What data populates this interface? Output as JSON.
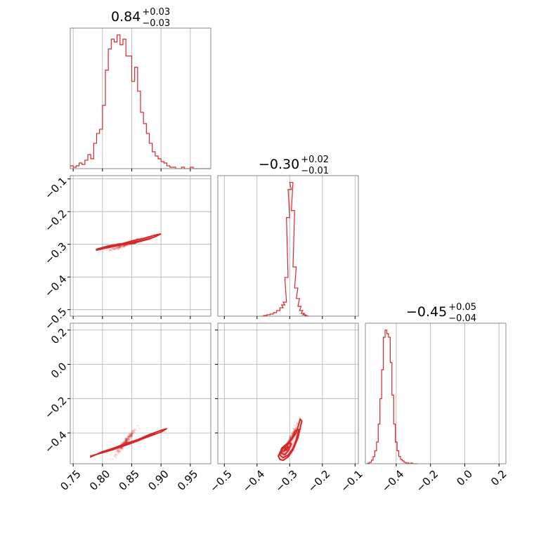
{
  "chart_data": {
    "type": "corner",
    "color": "#d62728",
    "titles": [
      {
        "value": "0.84",
        "plus": "+0.03",
        "minus": "−0.03"
      },
      {
        "value": "−0.30",
        "plus": "+0.02",
        "minus": "−0.01"
      },
      {
        "value": "−0.45",
        "plus": "+0.05",
        "minus": "−0.04"
      }
    ],
    "ranges": [
      [
        0.745,
        0.985
      ],
      [
        -0.52,
        -0.09
      ],
      [
        -0.58,
        0.24
      ]
    ],
    "ticks": [
      [
        0.75,
        0.8,
        0.85,
        0.9,
        0.95
      ],
      [
        -0.1,
        -0.2,
        -0.3,
        -0.4,
        -0.5
      ],
      [
        0.2,
        0.0,
        -0.2,
        -0.4
      ]
    ],
    "bottom_tick_labels": [
      [
        "0.75",
        "0.80",
        "0.85",
        "0.90",
        "0.95"
      ],
      [
        "−0.5",
        "−0.4",
        "−0.3",
        "−0.2",
        "−0.1"
      ],
      [
        "−0.4",
        "−0.2",
        "0.0",
        "0.2"
      ]
    ],
    "bottom_tick_values": [
      [
        0.75,
        0.8,
        0.85,
        0.9,
        0.95
      ],
      [
        -0.5,
        -0.4,
        -0.3,
        -0.2,
        -0.1
      ],
      [
        -0.4,
        -0.2,
        0.0,
        0.2
      ]
    ],
    "left_tick_labels": {
      "row1": [
        "−0.1",
        "−0.2",
        "−0.3",
        "−0.4",
        "−0.5"
      ],
      "row2": [
        "0.2",
        "0.0",
        "−0.2",
        "−0.4"
      ]
    },
    "left_tick_values": {
      "row1": [
        -0.1,
        -0.2,
        -0.3,
        -0.4,
        -0.5
      ],
      "row2": [
        0.2,
        0.0,
        -0.2,
        -0.4
      ]
    },
    "hist": [
      {
        "param": 0,
        "x": [
          0.745,
          0.75,
          0.755,
          0.76,
          0.765,
          0.77,
          0.775,
          0.78,
          0.785,
          0.79,
          0.795,
          0.8,
          0.805,
          0.81,
          0.815,
          0.82,
          0.825,
          0.83,
          0.835,
          0.84,
          0.845,
          0.85,
          0.855,
          0.86,
          0.865,
          0.87,
          0.875,
          0.88,
          0.885,
          0.89,
          0.895,
          0.9,
          0.905,
          0.91,
          0.915,
          0.92,
          0.925,
          0.93,
          0.935,
          0.94,
          0.945,
          0.95,
          0.955,
          0.96,
          0.965,
          0.97,
          0.975,
          0.98
        ],
        "counts": [
          2,
          1,
          2,
          4,
          3,
          6,
          10,
          7,
          18,
          25,
          28,
          45,
          70,
          85,
          92,
          90,
          95,
          88,
          92,
          80,
          80,
          62,
          72,
          55,
          40,
          32,
          25,
          18,
          12,
          9,
          7,
          5,
          4,
          2,
          1,
          1,
          0,
          0,
          1,
          0,
          0,
          1,
          0,
          0,
          0,
          0,
          0,
          0
        ]
      },
      {
        "param": 1,
        "x": [
          -0.39,
          -0.38,
          -0.37,
          -0.36,
          -0.35,
          -0.34,
          -0.33,
          -0.325,
          -0.32,
          -0.315,
          -0.31,
          -0.305,
          -0.3,
          -0.295,
          -0.29,
          -0.285,
          -0.28,
          -0.275,
          -0.27,
          -0.265,
          -0.26,
          -0.255,
          -0.25
        ],
        "counts": [
          0,
          1,
          2,
          3,
          5,
          8,
          12,
          16,
          20,
          55,
          140,
          180,
          190,
          150,
          70,
          40,
          25,
          14,
          8,
          4,
          2,
          1,
          0
        ]
      },
      {
        "param": 2,
        "x": [
          -0.575,
          -0.565,
          -0.555,
          -0.545,
          -0.535,
          -0.525,
          -0.515,
          -0.505,
          -0.495,
          -0.485,
          -0.475,
          -0.465,
          -0.455,
          -0.445,
          -0.435,
          -0.425,
          -0.415,
          -0.405,
          -0.395,
          -0.385,
          -0.375,
          -0.365,
          -0.355,
          -0.345,
          -0.335,
          -0.325,
          -0.315,
          -0.305,
          -0.295,
          -0.285
        ],
        "counts": [
          0,
          1,
          2,
          5,
          10,
          18,
          30,
          55,
          90,
          130,
          175,
          185,
          180,
          175,
          140,
          95,
          55,
          30,
          18,
          10,
          6,
          4,
          2,
          1,
          1,
          0,
          1,
          0,
          0,
          0
        ]
      }
    ],
    "joint": [
      {
        "params": [
          0,
          1
        ],
        "center": [
          0.84,
          -0.3
        ],
        "direction": [
          1.0,
          0.35
        ],
        "contours": [
          {
            "x": [
              0.79,
              0.8,
              0.81,
              0.82,
              0.83,
              0.84,
              0.85,
              0.86,
              0.87,
              0.88,
              0.89,
              0.9,
              0.89,
              0.87,
              0.85,
              0.83,
              0.81,
              0.79
            ],
            "y": [
              -0.315,
              -0.31,
              -0.305,
              -0.302,
              -0.3,
              -0.298,
              -0.296,
              -0.293,
              -0.288,
              -0.283,
              -0.277,
              -0.268,
              -0.272,
              -0.282,
              -0.29,
              -0.3,
              -0.31,
              -0.318
            ]
          },
          {
            "x": [
              0.8,
              0.82,
              0.84,
              0.86,
              0.88,
              0.885,
              0.87,
              0.85,
              0.83,
              0.81,
              0.8
            ],
            "y": [
              -0.31,
              -0.303,
              -0.299,
              -0.293,
              -0.284,
              -0.28,
              -0.287,
              -0.295,
              -0.302,
              -0.31,
              -0.312
            ]
          },
          {
            "x": [
              0.815,
              0.83,
              0.845,
              0.86,
              0.855,
              0.84,
              0.825,
              0.815
            ],
            "y": [
              -0.304,
              -0.3,
              -0.297,
              -0.293,
              -0.297,
              -0.3,
              -0.303,
              -0.306
            ]
          },
          {
            "x": [
              0.825,
              0.84,
              0.835,
              0.825
            ],
            "y": [
              -0.3,
              -0.297,
              -0.3,
              -0.302
            ]
          }
        ]
      },
      {
        "params": [
          0,
          2
        ],
        "center": [
          0.84,
          -0.45
        ],
        "direction": [
          1.0,
          1.25
        ],
        "contours": [
          {
            "x": [
              0.78,
              0.8,
              0.82,
              0.84,
              0.86,
              0.88,
              0.9,
              0.91,
              0.9,
              0.88,
              0.86,
              0.84,
              0.82,
              0.8,
              0.78
            ],
            "y": [
              -0.535,
              -0.515,
              -0.495,
              -0.47,
              -0.445,
              -0.42,
              -0.395,
              -0.375,
              -0.385,
              -0.41,
              -0.44,
              -0.465,
              -0.49,
              -0.51,
              -0.54
            ]
          },
          {
            "x": [
              0.79,
              0.81,
              0.83,
              0.85,
              0.87,
              0.89,
              0.88,
              0.86,
              0.84,
              0.82,
              0.8,
              0.79
            ],
            "y": [
              -0.525,
              -0.505,
              -0.482,
              -0.458,
              -0.432,
              -0.405,
              -0.41,
              -0.44,
              -0.462,
              -0.488,
              -0.51,
              -0.525
            ]
          },
          {
            "x": [
              0.8,
              0.82,
              0.84,
              0.86,
              0.87,
              0.86,
              0.84,
              0.82,
              0.8
            ],
            "y": [
              -0.515,
              -0.495,
              -0.47,
              -0.447,
              -0.432,
              -0.44,
              -0.463,
              -0.49,
              -0.515
            ]
          },
          {
            "x": [
              0.81,
              0.83,
              0.85,
              0.84,
              0.82,
              0.81
            ],
            "y": [
              -0.505,
              -0.483,
              -0.46,
              -0.462,
              -0.488,
              -0.505
            ]
          }
        ]
      },
      {
        "params": [
          1,
          2
        ],
        "center": [
          -0.3,
          -0.45
        ],
        "direction": [
          1.0,
          2.3
        ],
        "contours": [
          {
            "x": [
              -0.335,
              -0.33,
              -0.32,
              -0.305,
              -0.29,
              -0.275,
              -0.263,
              -0.268,
              -0.28,
              -0.295,
              -0.31,
              -0.325,
              -0.335
            ],
            "y": [
              -0.535,
              -0.555,
              -0.56,
              -0.54,
              -0.5,
              -0.43,
              -0.33,
              -0.32,
              -0.4,
              -0.44,
              -0.47,
              -0.495,
              -0.535
            ]
          },
          {
            "x": [
              -0.33,
              -0.32,
              -0.305,
              -0.29,
              -0.28,
              -0.272,
              -0.282,
              -0.295,
              -0.31,
              -0.325,
              -0.33
            ],
            "y": [
              -0.53,
              -0.545,
              -0.53,
              -0.49,
              -0.44,
              -0.38,
              -0.385,
              -0.44,
              -0.465,
              -0.49,
              -0.53
            ]
          },
          {
            "x": [
              -0.325,
              -0.315,
              -0.305,
              -0.295,
              -0.3,
              -0.312,
              -0.322,
              -0.325
            ],
            "y": [
              -0.52,
              -0.528,
              -0.505,
              -0.465,
              -0.455,
              -0.475,
              -0.495,
              -0.52
            ]
          },
          {
            "x": [
              -0.318,
              -0.31,
              -0.305,
              -0.312,
              -0.318
            ],
            "y": [
              -0.505,
              -0.5,
              -0.483,
              -0.485,
              -0.505
            ]
          }
        ]
      }
    ]
  }
}
